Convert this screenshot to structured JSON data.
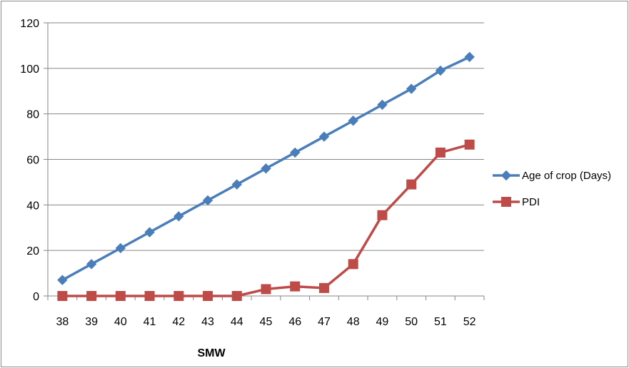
{
  "chart_data": {
    "type": "line",
    "title": "",
    "xlabel": "SMW",
    "ylabel": "",
    "categories": [
      "38",
      "39",
      "40",
      "41",
      "42",
      "43",
      "44",
      "45",
      "46",
      "47",
      "48",
      "49",
      "50",
      "51",
      "52"
    ],
    "ylim": [
      0,
      120
    ],
    "yticks": [
      0,
      20,
      40,
      60,
      80,
      100,
      120
    ],
    "grid": true,
    "legend_position": "right",
    "series": [
      {
        "name": "Age of crop (Days)",
        "color": "#4a7ebb",
        "marker": "diamond",
        "values": [
          7,
          14,
          21,
          28,
          35,
          42,
          49,
          56,
          63,
          70,
          77,
          84,
          91,
          99,
          105
        ]
      },
      {
        "name": "PDI",
        "color": "#be4b48",
        "marker": "square",
        "values": [
          0,
          0,
          0,
          0,
          0,
          0,
          0,
          3,
          4.2,
          3.5,
          14,
          35.5,
          49,
          63,
          66.5
        ]
      }
    ]
  }
}
